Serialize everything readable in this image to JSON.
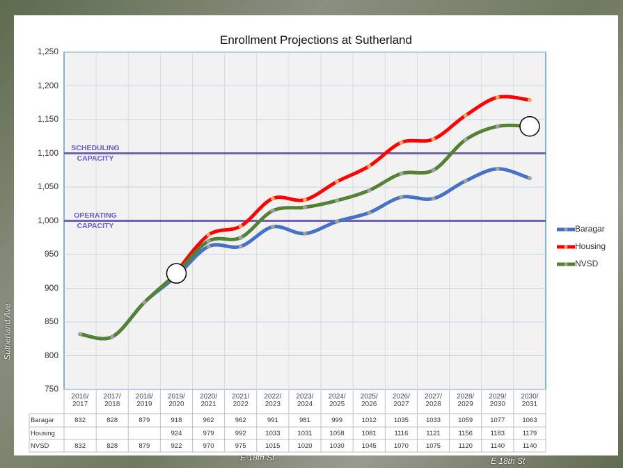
{
  "chart_data": {
    "type": "line",
    "title": "Enrollment Projections at Sutherland",
    "categories": [
      "2016/\n2017",
      "2017/\n2018",
      "2018/\n2019",
      "2019/\n2020",
      "2020/\n2021",
      "2021/\n2022",
      "2022/\n2023",
      "2023/\n2024",
      "2024/\n2025",
      "2025/\n2026",
      "2026/\n2027",
      "2027/\n2028",
      "2028/\n2029",
      "2029/\n2030",
      "2030/\n2031"
    ],
    "series": [
      {
        "name": "Baragar",
        "color": "#4472c4",
        "values": [
          832,
          828,
          879,
          918,
          962,
          962,
          991,
          981,
          999,
          1012,
          1035,
          1033,
          1059,
          1077,
          1063
        ]
      },
      {
        "name": "Housing",
        "color": "#ff0000",
        "values": [
          null,
          null,
          null,
          924,
          979,
          992,
          1033,
          1031,
          1058,
          1081,
          1116,
          1121,
          1156,
          1183,
          1179
        ]
      },
      {
        "name": "NVSD",
        "color": "#548235",
        "values": [
          832,
          828,
          879,
          922,
          970,
          975,
          1015,
          1020,
          1030,
          1045,
          1070,
          1075,
          1120,
          1140,
          1140
        ]
      }
    ],
    "ylim": [
      750,
      1250
    ],
    "yticks": [
      750,
      800,
      850,
      900,
      950,
      {
        "value": 1000,
        "label": "1,000"
      },
      {
        "value": 1050,
        "label": "1,050"
      },
      {
        "value": 1100,
        "label": "1,100"
      },
      {
        "value": 1150,
        "label": "1,150"
      },
      {
        "value": 1200,
        "label": "1,200"
      },
      {
        "value": 1250,
        "label": "1,250"
      }
    ],
    "grid": true,
    "legend": "right",
    "reference_lines": [
      {
        "value": 1100,
        "label": "SCHEDULING\nCAPACITY"
      },
      {
        "value": 1000,
        "label": "OPERATING\nCAPACITY"
      }
    ],
    "highlights": [
      {
        "series": 2,
        "index": 3
      },
      {
        "series": 2,
        "index": 14
      }
    ]
  },
  "map_labels": [
    "E 18th St",
    "E 18th St",
    "Sutherland  Ave"
  ]
}
